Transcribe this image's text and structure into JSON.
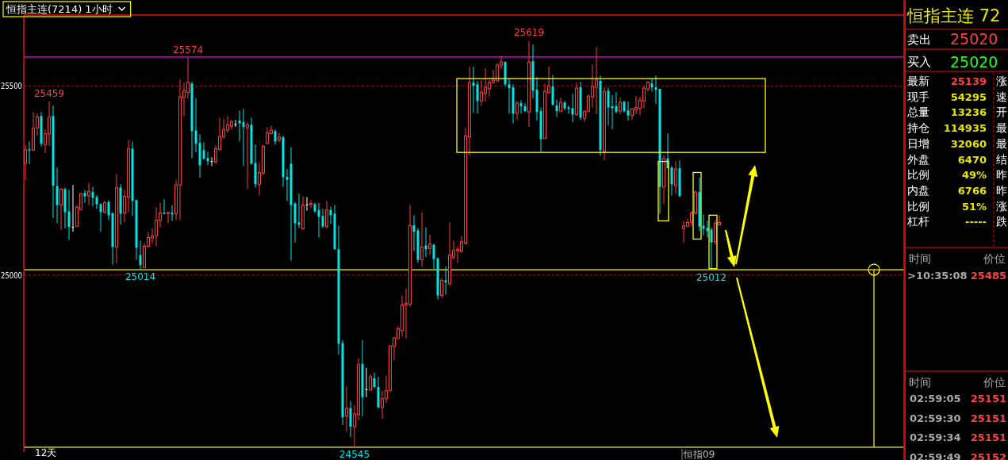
{
  "chart_data": [
    {
      "type": "candlestick",
      "title": "恒指主连(7214)  1小时",
      "categories": [
        null,
        null,
        null,
        null,
        null,
        null,
        null,
        null,
        null,
        null,
        null,
        null,
        null,
        null,
        null,
        null,
        null,
        null,
        null,
        null,
        null,
        null,
        null,
        null,
        null,
        null,
        null,
        null,
        null,
        null,
        null,
        null,
        null,
        null,
        null,
        null,
        null,
        null,
        null,
        null,
        null,
        null,
        null,
        null,
        null,
        null,
        null,
        null,
        null,
        null,
        null,
        null,
        null,
        null,
        null,
        null,
        null,
        null,
        null,
        null,
        null,
        null,
        null,
        null,
        null,
        null,
        null,
        null,
        null,
        null,
        null,
        null,
        null,
        null,
        null,
        null,
        null,
        null,
        null,
        null,
        null,
        null,
        null,
        null,
        null,
        null,
        null,
        null,
        null,
        null,
        null,
        null,
        null,
        null,
        null,
        null,
        null,
        null,
        null,
        null,
        null,
        null,
        null,
        null,
        null,
        null,
        null,
        null,
        null,
        null,
        null,
        null,
        null,
        null,
        null,
        null,
        null,
        null,
        null,
        null,
        null,
        null,
        null,
        null,
        null,
        null,
        null,
        null,
        null,
        null,
        null,
        null,
        null,
        null,
        null,
        null,
        null,
        null,
        null,
        null,
        null,
        null,
        null,
        null,
        null,
        null,
        null,
        null,
        null,
        null,
        null,
        null,
        null,
        null,
        null,
        null,
        null,
        null,
        null,
        null,
        null,
        null,
        null,
        null,
        null,
        null,
        null,
        null,
        null,
        null,
        null,
        null,
        null,
        null,
        null,
        null,
        null,
        null,
        null,
        null,
        null,
        null,
        null,
        null,
        null,
        null,
        null,
        null,
        null,
        null,
        null,
        null,
        null,
        null,
        null,
        null,
        null,
        null,
        null,
        null,
        null,
        null,
        null,
        null,
        null,
        null,
        null,
        null,
        null,
        null,
        null,
        null,
        null,
        null,
        null,
        null,
        null,
        null,
        null,
        null,
        null,
        null
      ],
      "ohlc": [
        [
          25295,
          25343,
          25251,
          25331
        ],
        [
          25332,
          25352,
          25293,
          25329
        ],
        [
          25330,
          25431,
          25329,
          25388
        ],
        [
          25389,
          25427,
          25368,
          25418
        ],
        [
          25420,
          25431,
          25340,
          25347
        ],
        [
          25345,
          25386,
          25322,
          25373
        ],
        [
          25373,
          25459,
          25342,
          25417
        ],
        [
          25420,
          25448,
          25151,
          25236
        ],
        [
          25235,
          25284,
          25137,
          25185
        ],
        [
          25185,
          25229,
          25119,
          25227
        ],
        [
          25227,
          25231,
          25123,
          25166
        ],
        [
          25168,
          25225,
          25093,
          25127
        ],
        [
          25127,
          25238,
          25114,
          25127
        ],
        [
          25129,
          25185,
          25127,
          25179
        ],
        [
          25173,
          25217,
          25170,
          25215
        ],
        [
          25217,
          25225,
          25191,
          25208
        ],
        [
          25209,
          25244,
          25185,
          25221
        ],
        [
          25219,
          25233,
          25181,
          25204
        ],
        [
          25206,
          25212,
          25175,
          25187
        ],
        [
          25187,
          25190,
          25114,
          25166
        ],
        [
          25166,
          25197,
          25162,
          25191
        ],
        [
          25193,
          25197,
          25145,
          25158
        ],
        [
          25164,
          25164,
          25028,
          25074
        ],
        [
          25074,
          25267,
          25030,
          25231
        ],
        [
          25231,
          25240,
          25133,
          25162
        ],
        [
          25164,
          25225,
          25139,
          25208
        ],
        [
          25206,
          25357,
          25166,
          25334
        ],
        [
          25334,
          25353,
          25156,
          25196
        ],
        [
          25198,
          25198,
          25040,
          25072
        ],
        [
          25053,
          25091,
          25014,
          25026
        ],
        [
          25019,
          25084,
          25019,
          25076
        ],
        [
          25076,
          25114,
          25072,
          25099
        ],
        [
          25098,
          25124,
          25084,
          25103
        ],
        [
          25104,
          25179,
          25076,
          25145
        ],
        [
          25144,
          25191,
          25126,
          25164
        ],
        [
          25164,
          25200,
          25161,
          25161
        ],
        [
          25163,
          25166,
          25137,
          25165
        ],
        [
          25164,
          25185,
          25143,
          25160
        ],
        [
          25162,
          25252,
          25145,
          25238
        ],
        [
          25238,
          25517,
          25145,
          25471
        ],
        [
          25469,
          25509,
          25420,
          25487
        ],
        [
          25483,
          25574,
          25467,
          25509
        ],
        [
          25506,
          25511,
          25309,
          25380
        ],
        [
          25382,
          25467,
          25324,
          25347
        ],
        [
          25349,
          25372,
          25257,
          25290
        ],
        [
          25330,
          25351,
          25305,
          25307
        ],
        [
          25309,
          25326,
          25290,
          25301
        ],
        [
          25301,
          25311,
          25288,
          25301
        ],
        [
          25299,
          25343,
          25294,
          25334
        ],
        [
          25332,
          25416,
          25330,
          25366
        ],
        [
          25366,
          25412,
          25359,
          25385
        ],
        [
          25383,
          25420,
          25376,
          25397
        ],
        [
          25393,
          25410,
          25385,
          25406
        ],
        [
          25399,
          25410,
          25391,
          25399
        ],
        [
          25408,
          25435,
          25353,
          25401
        ],
        [
          25404,
          25439,
          25288,
          25391
        ],
        [
          25389,
          25404,
          25227,
          25397
        ],
        [
          25397,
          25416,
          25292,
          25294
        ],
        [
          25296,
          25345,
          25231,
          25240
        ],
        [
          25240,
          25298,
          25210,
          25271
        ],
        [
          25269,
          25345,
          25265,
          25340
        ],
        [
          25348,
          25391,
          25348,
          25376
        ],
        [
          25374,
          25395,
          25372,
          25383
        ],
        [
          25380,
          25385,
          25345,
          25353
        ],
        [
          25357,
          25376,
          25351,
          25364
        ],
        [
          25364,
          25368,
          25233,
          25259
        ],
        [
          25259,
          25280,
          25196,
          25252
        ],
        [
          25294,
          25338,
          25038,
          25185
        ],
        [
          25189,
          25193,
          25086,
          25137
        ],
        [
          25139,
          25215,
          25124,
          25133
        ],
        [
          25122,
          25208,
          25122,
          25185
        ],
        [
          25187,
          25206,
          25170,
          25187
        ],
        [
          25186,
          25198,
          25177,
          25189
        ],
        [
          25187,
          25191,
          25164,
          25168
        ],
        [
          25172,
          25191,
          25099,
          25154
        ],
        [
          25156,
          25175,
          25124,
          25128
        ],
        [
          25128,
          25196,
          25122,
          25172
        ],
        [
          25172,
          25181,
          25135,
          25158
        ],
        [
          25162,
          25185,
          25068,
          25068
        ],
        [
          25068,
          25130,
          24790,
          24818
        ],
        [
          24820,
          24828,
          24603,
          24624
        ],
        [
          24627,
          24706,
          24585,
          24648
        ],
        [
          24648,
          24666,
          24572,
          24599
        ],
        [
          24599,
          24656,
          24545,
          24633
        ],
        [
          24631,
          24780,
          24616,
          24763
        ],
        [
          24765,
          24828,
          24627,
          24677
        ],
        [
          24698,
          24755,
          24677,
          24698
        ],
        [
          24696,
          24738,
          24696,
          24731
        ],
        [
          24727,
          24742,
          24700,
          24704
        ],
        [
          24704,
          24731,
          24648,
          24650
        ],
        [
          24650,
          24694,
          24620,
          24673
        ],
        [
          24673,
          24734,
          24662,
          24694
        ],
        [
          24694,
          24813,
          24694,
          24813
        ],
        [
          24811,
          24834,
          24774,
          24834
        ],
        [
          24832,
          24864,
          24832,
          24858
        ],
        [
          24853,
          24946,
          24837,
          24921
        ],
        [
          24921,
          24965,
          24832,
          24925
        ],
        [
          24923,
          25185,
          24916,
          25131
        ],
        [
          25131,
          25158,
          25063,
          25114
        ],
        [
          25118,
          25124,
          25032,
          25040
        ],
        [
          25040,
          25166,
          25021,
          25074
        ],
        [
          25078,
          25126,
          25047,
          25068
        ],
        [
          25070,
          25107,
          25053,
          25082
        ],
        [
          25080,
          25082,
          25015,
          25042
        ],
        [
          25044,
          25046,
          24935,
          24946
        ],
        [
          24946,
          24992,
          24939,
          24986
        ],
        [
          24986,
          25023,
          24948,
          24981
        ],
        [
          24977,
          25139,
          24971,
          25053
        ],
        [
          25047,
          25091,
          25042,
          25065
        ],
        [
          25064,
          25076,
          25032,
          25068
        ],
        [
          25063,
          25103,
          25059,
          25088
        ],
        [
          25084,
          25389,
          25080,
          25368
        ],
        [
          25365,
          25551,
          25315,
          25509
        ],
        [
          25509,
          25551,
          25429,
          25500
        ],
        [
          25504,
          25513,
          25427,
          25460
        ],
        [
          25460,
          25515,
          25448,
          25483
        ],
        [
          25480,
          25546,
          25458,
          25496
        ],
        [
          25492,
          25515,
          25471,
          25509
        ],
        [
          25509,
          25542,
          25506,
          25515
        ],
        [
          25513,
          25559,
          25511,
          25555
        ],
        [
          25555,
          25580,
          25544,
          25563
        ],
        [
          25563,
          25565,
          25498,
          25504
        ],
        [
          25504,
          25517,
          25427,
          25494
        ],
        [
          25496,
          25504,
          25401,
          25427
        ],
        [
          25427,
          25460,
          25410,
          25454
        ],
        [
          25454,
          25462,
          25427,
          25446
        ],
        [
          25446,
          25454,
          25431,
          25433
        ],
        [
          25431,
          25619,
          25391,
          25563
        ],
        [
          25565,
          25609,
          25467,
          25487
        ],
        [
          25490,
          25523,
          25408,
          25431
        ],
        [
          25433,
          25443,
          25326,
          25359
        ],
        [
          25361,
          25506,
          25361,
          25485
        ],
        [
          25483,
          25551,
          25479,
          25500
        ],
        [
          25498,
          25529,
          25448,
          25450
        ],
        [
          25448,
          25464,
          25418,
          25433
        ],
        [
          25433,
          25469,
          25433,
          25456
        ],
        [
          25456,
          25460,
          25435,
          25441
        ],
        [
          25443,
          25448,
          25427,
          25439
        ],
        [
          25441,
          25479,
          25404,
          25424
        ],
        [
          25424,
          25509,
          25422,
          25494
        ],
        [
          25496,
          25511,
          25410,
          25416
        ],
        [
          25414,
          25435,
          25404,
          25433
        ],
        [
          25433,
          25477,
          25431,
          25473
        ],
        [
          25471,
          25557,
          25443,
          25498
        ],
        [
          25496,
          25603,
          25425,
          25515
        ],
        [
          25513,
          25527,
          25315,
          25330
        ],
        [
          25326,
          25496,
          25303,
          25485
        ],
        [
          25487,
          25496,
          25395,
          25443
        ],
        [
          25446,
          25475,
          25385,
          25441
        ],
        [
          25446,
          25483,
          25427,
          25431
        ],
        [
          25433,
          25469,
          25425,
          25456
        ],
        [
          25458,
          25460,
          25429,
          25433
        ],
        [
          25435,
          25458,
          25408,
          25422
        ],
        [
          25422,
          25441,
          25410,
          25439
        ],
        [
          25437,
          25473,
          25425,
          25443
        ],
        [
          25441,
          25471,
          25422,
          25462
        ],
        [
          25460,
          25500,
          25441,
          25494
        ],
        [
          25492,
          25513,
          25485,
          25509
        ],
        [
          25506,
          25519,
          25485,
          25496
        ],
        [
          25496,
          25527,
          25452,
          25490
        ],
        [
          25492,
          25492,
          25162,
          25233
        ],
        [
          25233,
          25317,
          25187,
          25308
        ],
        [
          25308,
          25374,
          25282,
          25282
        ],
        [
          25284,
          25288,
          25210,
          25240
        ],
        [
          25236,
          25301,
          25214,
          25280
        ],
        [
          25282,
          25303,
          25208,
          25208
        ],
        [
          25123,
          25143,
          25085,
          25130
        ],
        [
          25129,
          25149,
          25127,
          25139
        ],
        [
          25140,
          25168,
          25130,
          25164
        ],
        [
          25164,
          25223,
          25160,
          25219
        ],
        [
          25219,
          25257,
          25116,
          25128
        ],
        [
          25130,
          25160,
          25105,
          25122
        ],
        [
          25124,
          25143,
          25099,
          25116
        ],
        [
          25120,
          25126,
          25012,
          25086
        ],
        [
          25088,
          25145,
          25080,
          25137
        ],
        [
          25133,
          25158,
          25131,
          25139
        ],
        null,
        null,
        null,
        null,
        null,
        null,
        null,
        null,
        null,
        null,
        null,
        null,
        null,
        null,
        null,
        null,
        null,
        null,
        null,
        null,
        null,
        null,
        null,
        null,
        null,
        null,
        null,
        null,
        null,
        null,
        null,
        null,
        null,
        null,
        null,
        null,
        null,
        null,
        null,
        null,
        null,
        null,
        null,
        null,
        null,
        null
      ],
      "ylim": [
        24532,
        25687
      ],
      "yticks": [
        25500,
        25000
      ],
      "tick_labels": "y",
      "grid": true,
      "ref_lines": [
        {
          "axis": "y",
          "value": 25576,
          "color": "#ff00ff"
        },
        {
          "axis": "y",
          "value": 25014,
          "color": "#ffff00"
        },
        {
          "axis": "y",
          "value": 24545,
          "color": "#ffff00"
        }
      ],
      "annotations": [
        {
          "text": "25459",
          "y": 25459
        },
        {
          "text": "25574",
          "y": 25574
        },
        {
          "text": "25619",
          "y": 25619
        },
        {
          "text": "25014",
          "y": 25014
        },
        {
          "text": "24545",
          "y": 24545
        },
        {
          "text": "25012",
          "y": 25012
        },
        "12天",
        "恒指09"
      ]
    },
    {
      "type": "other",
      "title": "恒指主连 72",
      "annotations": [
        "卖出",
        "25020",
        "买入",
        "25020",
        "最新",
        "25139",
        "现手",
        "54295",
        "总量",
        "13236",
        "持仓",
        "114935",
        "日增",
        "32060",
        "外盘",
        "6470",
        "比例",
        "49%",
        "内盘",
        "6766",
        "比例",
        "51%",
        "杠杆",
        "-----",
        "涨",
        "速",
        "开",
        "最",
        "最",
        "结",
        "昨",
        "昨",
        "涨",
        "跌",
        "时间",
        "价位",
        ">10:35:08",
        "25485",
        "时间",
        "价位",
        "02:59:05",
        "25151",
        "02:59:30",
        "25151",
        "02:59:34",
        "25151",
        "02:59:49",
        "25152"
      ]
    }
  ]
}
